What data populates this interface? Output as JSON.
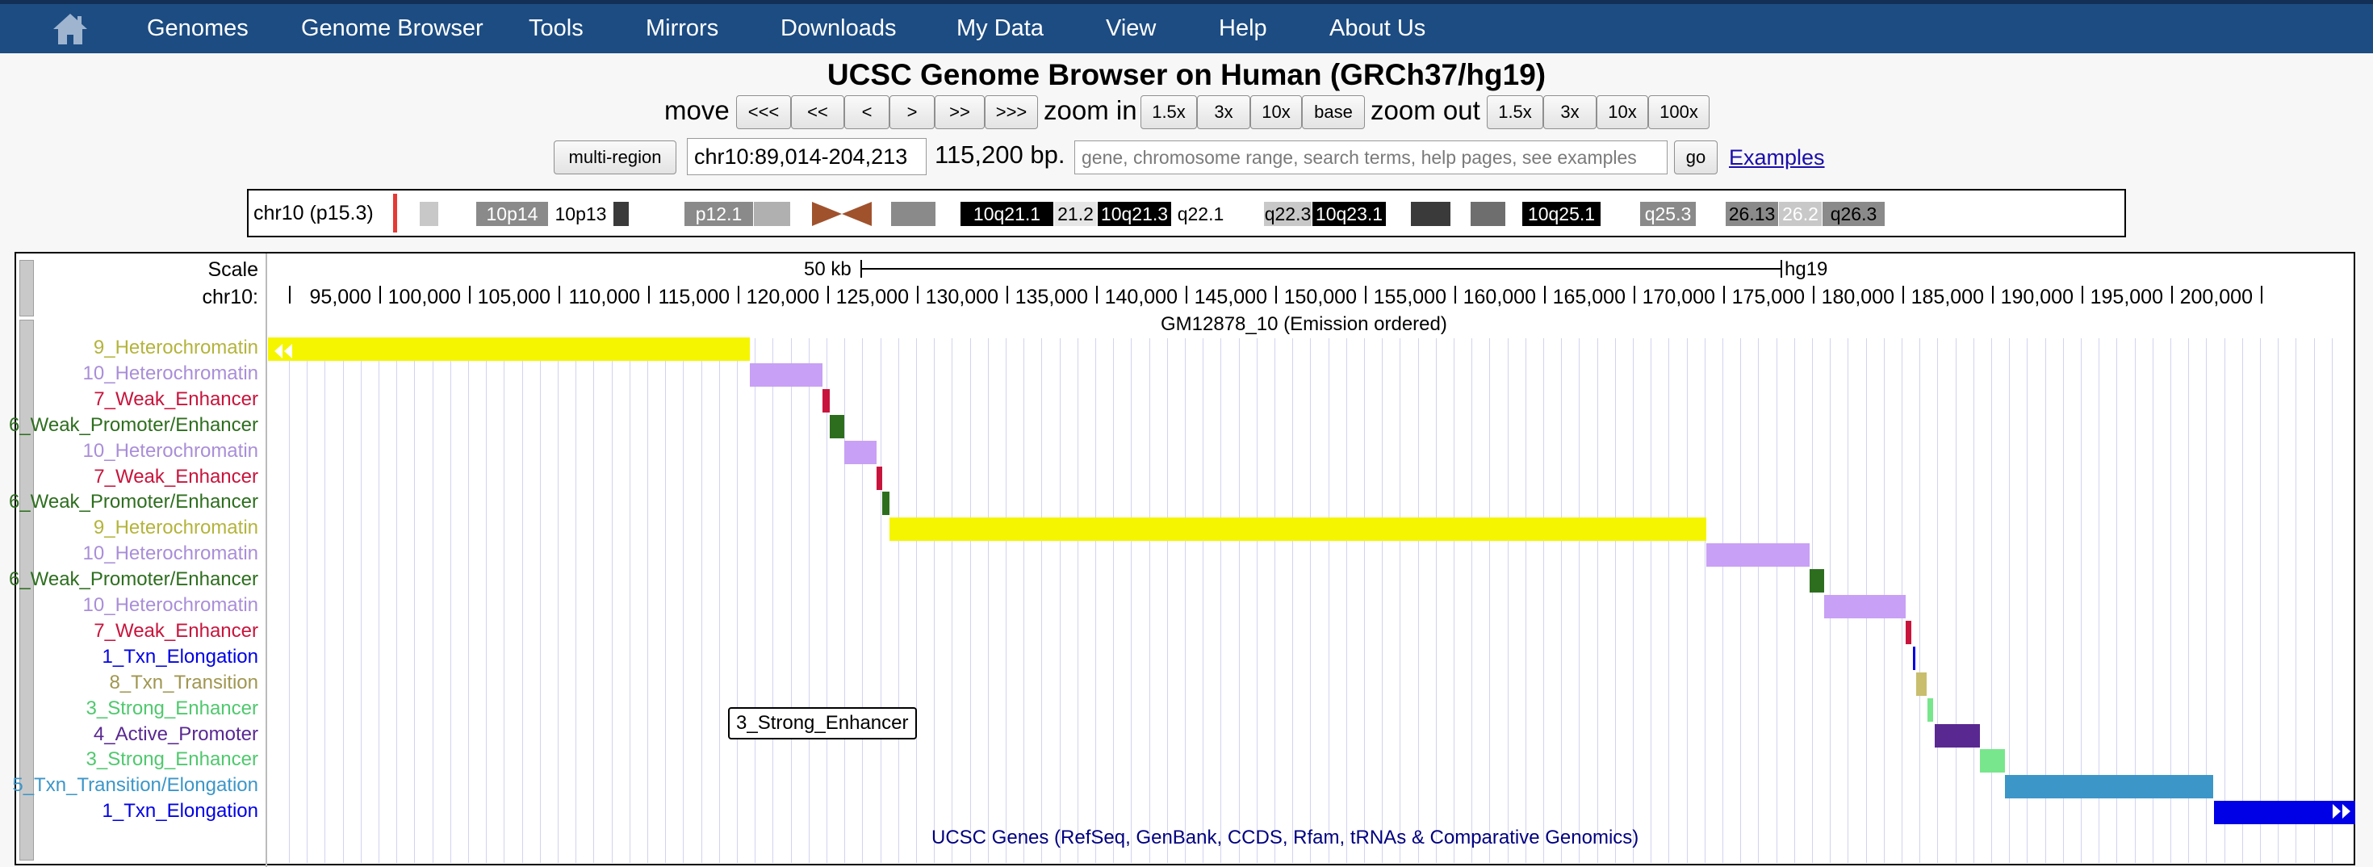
{
  "nav": {
    "items": [
      "Genomes",
      "Genome Browser",
      "Tools",
      "Mirrors",
      "Downloads",
      "My Data",
      "View",
      "Help",
      "About Us"
    ]
  },
  "header": {
    "title": "UCSC Genome Browser on Human (GRCh37/hg19)",
    "move_label": "move",
    "move_buttons": [
      "<<<",
      "<<",
      "<",
      ">",
      ">>",
      ">>>"
    ],
    "zoom_in_label": "zoom in",
    "zoom_in_buttons": [
      "1.5x",
      "3x",
      "10x",
      "base"
    ],
    "zoom_out_label": "zoom out",
    "zoom_out_buttons": [
      "1.5x",
      "3x",
      "10x",
      "100x"
    ]
  },
  "position": {
    "multi_region_label": "multi-region",
    "value": "chr10:89,014-204,213",
    "size": "115,200 bp.",
    "search_placeholder": "gene, chromosome range, search terms, help pages, see examples",
    "go_label": "go",
    "examples_label": "Examples"
  },
  "ideogram": {
    "label": "chr10 (p15.3)",
    "highlight_color": "#e53935",
    "bands": [
      {
        "label": "",
        "color": "#ffffff",
        "text": "#000000"
      },
      {
        "label": "",
        "color": "#c8c8c8",
        "text": "#000000"
      },
      {
        "label": "",
        "color": "#ffffff",
        "text": "#000000"
      },
      {
        "label": "10p14",
        "color": "#8a8a8a",
        "text": "#ffffff"
      },
      {
        "label": "10p13",
        "color": "#ffffff",
        "text": "#000000"
      },
      {
        "label": "",
        "color": "#3a3a3a",
        "text": "#ffffff"
      },
      {
        "label": "",
        "color": "#ffffff",
        "text": "#000000"
      },
      {
        "label": "p12.1",
        "color": "#8a8a8a",
        "text": "#ffffff"
      },
      {
        "label": "",
        "color": "#b0b0b0",
        "text": "#000000"
      },
      {
        "label": "",
        "color": "#ffffff",
        "text": "#000000"
      },
      {
        "label": "",
        "color": "#a0522d",
        "text": "#000000"
      },
      {
        "label": "",
        "color": "#ffffff",
        "text": "#000000"
      },
      {
        "label": "",
        "color": "#8a8a8a",
        "text": "#ffffff"
      },
      {
        "label": "",
        "color": "#ffffff",
        "text": "#000000"
      },
      {
        "label": "10q21.1",
        "color": "#000000",
        "text": "#ffffff"
      },
      {
        "label": "21.2",
        "color": "#e6e6e6",
        "text": "#000000"
      },
      {
        "label": "10q21.3",
        "color": "#000000",
        "text": "#ffffff"
      },
      {
        "label": "q22.1",
        "color": "#ffffff",
        "text": "#000000"
      },
      {
        "label": "",
        "color": "#ffffff",
        "text": "#000000"
      },
      {
        "label": "q22.3",
        "color": "#c8c8c8",
        "text": "#000000"
      },
      {
        "label": "10q23.1",
        "color": "#000000",
        "text": "#ffffff"
      },
      {
        "label": "",
        "color": "#ffffff",
        "text": "#000000"
      },
      {
        "label": "",
        "color": "#3a3a3a",
        "text": "#ffffff"
      },
      {
        "label": "",
        "color": "#ffffff",
        "text": "#000000"
      },
      {
        "label": "",
        "color": "#6e6e6e",
        "text": "#ffffff"
      },
      {
        "label": "",
        "color": "#ffffff",
        "text": "#000000"
      },
      {
        "label": "10q25.1",
        "color": "#000000",
        "text": "#ffffff"
      },
      {
        "label": "",
        "color": "#ffffff",
        "text": "#000000"
      },
      {
        "label": "q25.3",
        "color": "#8a8a8a",
        "text": "#ffffff"
      },
      {
        "label": "",
        "color": "#ffffff",
        "text": "#000000"
      },
      {
        "label": "26.13",
        "color": "#8a8a8a",
        "text": "#000000"
      },
      {
        "label": "26.2",
        "color": "#c8c8c8",
        "text": "#ffffff"
      },
      {
        "label": "q26.3",
        "color": "#8a8a8a",
        "text": "#000000"
      }
    ]
  },
  "ruler": {
    "scale_label": "Scale",
    "scale_bar_label": "50 kb",
    "assembly": "hg19",
    "chrom_label": "chr10:",
    "ticks": [
      "95,000",
      "100,000",
      "105,000",
      "110,000",
      "115,000",
      "120,000",
      "125,000",
      "130,000",
      "135,000",
      "140,000",
      "145,000",
      "150,000",
      "155,000",
      "160,000",
      "165,000",
      "170,000",
      "175,000",
      "180,000",
      "185,000",
      "190,000",
      "195,000",
      "200,000"
    ]
  },
  "track": {
    "title": "GM12878_10 (Emission ordered)",
    "next_track_title": "UCSC Genes (RefSeq, GenBank, CCDS, Rfam, tRNAs & Comparative Genomics)",
    "view_start": 89014,
    "view_end": 204213,
    "states": [
      {
        "label": "9_Heterochromatin",
        "color": "#f5f500",
        "label_color": "#b4b43c",
        "start": 89014,
        "end": 115600
      },
      {
        "label": "10_Heterochromatin",
        "color": "#c8a0f5",
        "label_color": "#a98ed8",
        "start": 115600,
        "end": 119600
      },
      {
        "label": "7_Weak_Enhancer",
        "color": "#c8143c",
        "label_color": "#c8143c",
        "start": 119600,
        "end": 120000
      },
      {
        "label": "6_Weak_Promoter/Enhancer",
        "color": "#2d6e1e",
        "label_color": "#2d6e1e",
        "start": 120000,
        "end": 120800
      },
      {
        "label": "10_Heterochromatin",
        "color": "#c8a0f5",
        "label_color": "#a98ed8",
        "start": 120800,
        "end": 122600
      },
      {
        "label": "7_Weak_Enhancer",
        "color": "#c8143c",
        "label_color": "#c8143c",
        "start": 122600,
        "end": 122900
      },
      {
        "label": "6_Weak_Promoter/Enhancer",
        "color": "#2d6e1e",
        "label_color": "#2d6e1e",
        "start": 122900,
        "end": 123300
      },
      {
        "label": "9_Heterochromatin",
        "color": "#f5f500",
        "label_color": "#b4b43c",
        "start": 123300,
        "end": 168400
      },
      {
        "label": "10_Heterochromatin",
        "color": "#c8a0f5",
        "label_color": "#a98ed8",
        "start": 168400,
        "end": 174100
      },
      {
        "label": "6_Weak_Promoter/Enhancer",
        "color": "#2d6e1e",
        "label_color": "#2d6e1e",
        "start": 174100,
        "end": 174900
      },
      {
        "label": "10_Heterochromatin",
        "color": "#c8a0f5",
        "label_color": "#a98ed8",
        "start": 174900,
        "end": 179400
      },
      {
        "label": "7_Weak_Enhancer",
        "color": "#c8143c",
        "label_color": "#c8143c",
        "start": 179400,
        "end": 179700
      },
      {
        "label": "1_Txn_Elongation",
        "color": "#0000e6",
        "label_color": "#0000e6",
        "start": 179800,
        "end": 179950
      },
      {
        "label": "8_Txn_Transition",
        "color": "#c8be6e",
        "label_color": "#a09650",
        "start": 180000,
        "end": 180600
      },
      {
        "label": "3_Strong_Enhancer",
        "color": "#78e68c",
        "label_color": "#50c86e",
        "start": 180600,
        "end": 180900
      },
      {
        "label": "4_Active_Promoter",
        "color": "#5a2891",
        "label_color": "#5a2891",
        "start": 181000,
        "end": 183500
      },
      {
        "label": "3_Strong_Enhancer",
        "color": "#78e68c",
        "label_color": "#50c86e",
        "start": 183500,
        "end": 184900
      },
      {
        "label": "5_Txn_Transition/Elongation",
        "color": "#3c96c8",
        "label_color": "#3c96c8",
        "start": 184900,
        "end": 196400
      },
      {
        "label": "1_Txn_Elongation",
        "color": "#0000e6",
        "label_color": "#0000e6",
        "start": 196400,
        "end": 204213
      }
    ],
    "tooltip": "3_Strong_Enhancer"
  }
}
